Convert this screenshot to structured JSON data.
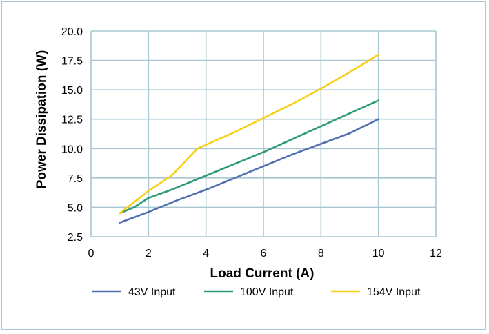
{
  "chart_data": {
    "type": "line",
    "title": "",
    "xlabel": "Load Current (A)",
    "ylabel": "Power Dissipation (W)",
    "xlim": [
      0,
      12
    ],
    "ylim": [
      2.5,
      20.0
    ],
    "x_ticks": [
      "0",
      "2",
      "4",
      "6",
      "8",
      "10",
      "12"
    ],
    "y_ticks": [
      "2.5",
      "5.0",
      "7.5",
      "10.0",
      "12.5",
      "15.0",
      "17.5",
      "20.0"
    ],
    "grid": true,
    "legend_position": "bottom",
    "series": [
      {
        "name": "43V Input",
        "color": "#4f6faf",
        "x": [
          1,
          2,
          3,
          4,
          5,
          6,
          7,
          8,
          9,
          10
        ],
        "y": [
          3.7,
          4.6,
          5.6,
          6.5,
          7.5,
          8.5,
          9.5,
          10.4,
          11.3,
          12.5
        ]
      },
      {
        "name": "100V Input",
        "color": "#2e9a73",
        "x": [
          1,
          1.5,
          2,
          2.8,
          4,
          5,
          6,
          7,
          8,
          9,
          10
        ],
        "y": [
          4.5,
          5.0,
          5.8,
          6.5,
          7.7,
          8.7,
          9.7,
          10.8,
          11.9,
          13.0,
          14.1
        ]
      },
      {
        "name": "154V Input",
        "color": "#f7cf13",
        "x": [
          1,
          2,
          2.8,
          3.7,
          5,
          6,
          7,
          8,
          9,
          10
        ],
        "y": [
          4.5,
          6.4,
          7.7,
          10.0,
          11.4,
          12.6,
          13.8,
          15.1,
          16.5,
          18.0
        ]
      }
    ]
  }
}
